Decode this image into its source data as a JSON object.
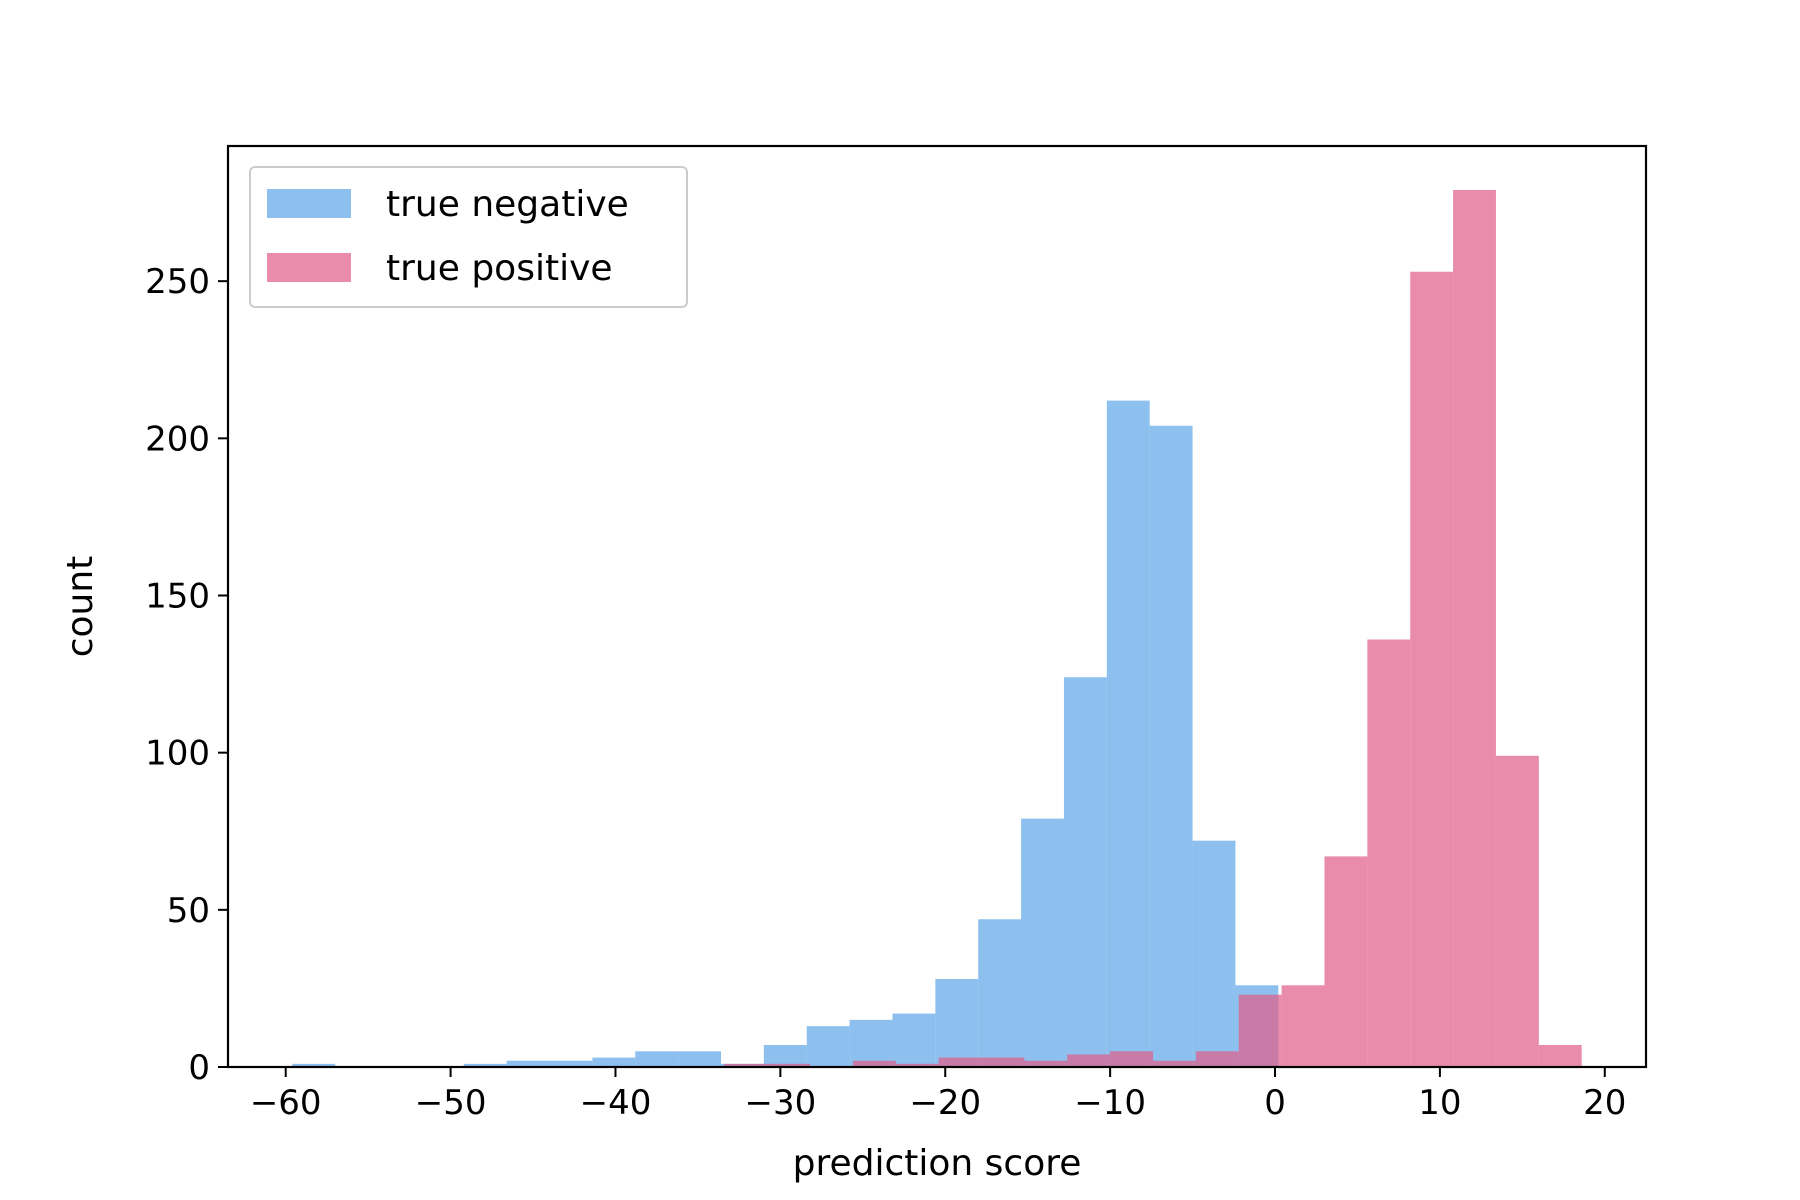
{
  "chart_data": {
    "type": "bar",
    "xlabel": "prediction score",
    "ylabel": "count",
    "xlim": [
      -63.5,
      22.5
    ],
    "ylim": [
      0,
      293
    ],
    "x_ticks": [
      -60,
      -50,
      -40,
      -30,
      -20,
      -10,
      0,
      10,
      20
    ],
    "x_tick_labels": [
      "−60",
      "−50",
      "−40",
      "−30",
      "−20",
      "−10",
      "0",
      "10",
      "20"
    ],
    "y_ticks": [
      0,
      50,
      100,
      150,
      200,
      250
    ],
    "y_tick_labels": [
      "0",
      "50",
      "100",
      "150",
      "200",
      "250"
    ],
    "legend": {
      "position": "top-left"
    },
    "grid": false,
    "series": [
      {
        "name": "true negative",
        "color": "#5DA5E8",
        "opacity": 0.7,
        "bin_edges": [
          -59.6,
          -57.0,
          -54.4,
          -51.8,
          -49.2,
          -46.6,
          -44.0,
          -41.4,
          -38.8,
          -36.2,
          -33.6,
          -31.0,
          -28.4,
          -25.8,
          -23.2,
          -20.6,
          -18.0,
          -15.4,
          -12.8,
          -10.2,
          -7.6,
          -5.0,
          -2.4,
          0.2
        ],
        "counts": [
          1,
          0,
          0,
          0,
          1,
          2,
          2,
          3,
          5,
          5,
          1,
          7,
          13,
          15,
          17,
          28,
          47,
          79,
          124,
          212,
          204,
          72,
          26
        ]
      },
      {
        "name": "true positive",
        "color": "#E0608C",
        "opacity": 0.72,
        "bin_edges": [
          -33.4,
          -30.8,
          -28.2,
          -25.6,
          -23.0,
          -20.4,
          -17.8,
          -15.2,
          -12.6,
          -10.0,
          -7.4,
          -4.8,
          -2.2,
          0.4,
          3.0,
          5.6,
          8.2,
          10.8,
          13.4,
          16.0,
          18.6
        ],
        "counts": [
          1,
          1,
          0,
          2,
          1,
          3,
          3,
          2,
          4,
          5,
          2,
          5,
          23,
          26,
          67,
          136,
          253,
          279,
          99,
          7
        ]
      }
    ]
  }
}
